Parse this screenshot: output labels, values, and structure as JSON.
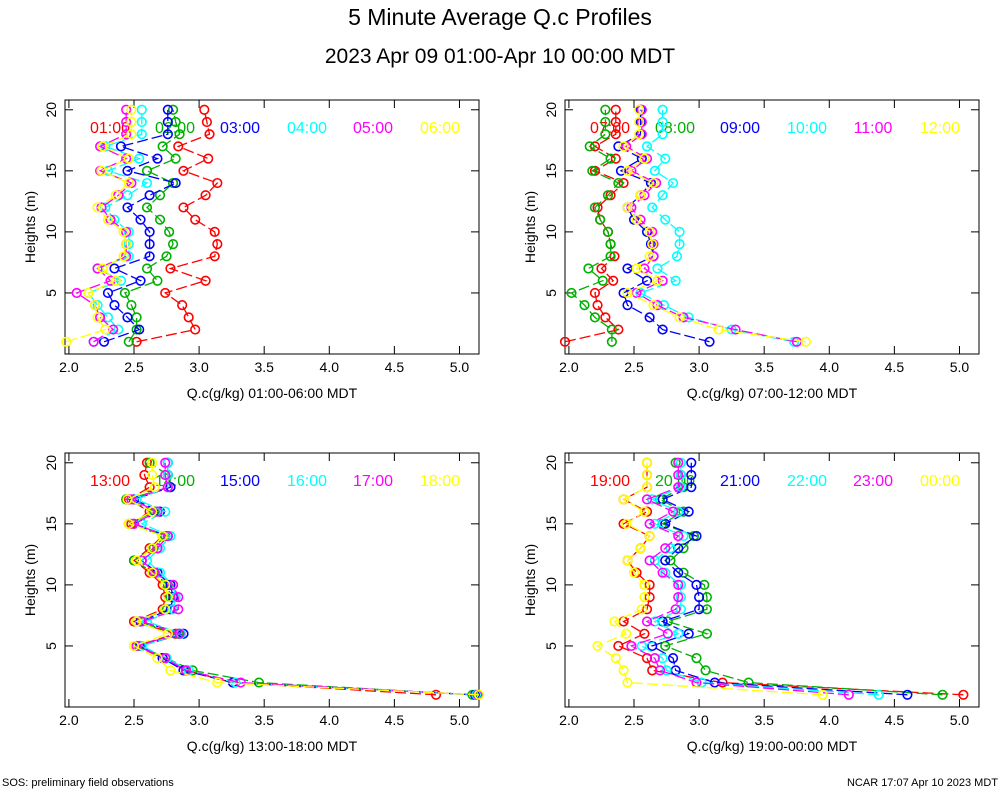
{
  "header": {
    "title": "5 Minute Average Q.c Profiles",
    "subtitle": "2023 Apr 09 01:00-Apr 10 00:00 MDT"
  },
  "footer": {
    "left": "SOS: preliminary field observations",
    "right": "NCAR 17:07 Apr 10 2023 MDT"
  },
  "colors": {
    "series": [
      "#ff0000",
      "#00b000",
      "#0000ff",
      "#00ffff",
      "#ff00ff",
      "#ffff00"
    ]
  },
  "chart_data": [
    {
      "type": "line",
      "title": "",
      "xlabel": "Q.c(g/kg) 01:00-06:00 MDT",
      "ylabel": "Heights (m)",
      "xlim": [
        1.97,
        5.15
      ],
      "ylim": [
        0,
        20.8
      ],
      "x_ticks": [
        "2.0",
        "2.5",
        "3.0",
        "3.5",
        "4.0",
        "4.5",
        "5.0"
      ],
      "y_ticks": [
        "5",
        "10",
        "15",
        "20"
      ],
      "heights": [
        1,
        2,
        3,
        4,
        5,
        6,
        7,
        8,
        9,
        10,
        11,
        12,
        13,
        14,
        15,
        16,
        17,
        18,
        19,
        20
      ],
      "series": [
        {
          "name": "01:00",
          "values": [
            2.52,
            2.97,
            2.92,
            2.87,
            2.74,
            3.05,
            2.78,
            3.12,
            3.14,
            3.12,
            2.97,
            2.88,
            3.05,
            3.14,
            2.88,
            3.07,
            2.84,
            3.08,
            3.06,
            3.04
          ]
        },
        {
          "name": "02:00",
          "values": [
            2.46,
            2.52,
            2.52,
            2.48,
            2.43,
            2.68,
            2.6,
            2.75,
            2.8,
            2.77,
            2.7,
            2.6,
            2.7,
            2.8,
            2.6,
            2.82,
            2.72,
            2.85,
            2.82,
            2.8
          ]
        },
        {
          "name": "03:00",
          "values": [
            2.27,
            2.54,
            2.45,
            2.35,
            2.3,
            2.55,
            2.35,
            2.62,
            2.62,
            2.62,
            2.55,
            2.45,
            2.62,
            2.82,
            2.45,
            2.68,
            2.4,
            2.76,
            2.76,
            2.76
          ]
        },
        {
          "name": "04:00",
          "values": [
            2.19,
            2.38,
            2.3,
            2.22,
            2.15,
            2.4,
            2.22,
            2.46,
            2.46,
            2.46,
            2.35,
            2.28,
            2.45,
            2.6,
            2.3,
            2.54,
            2.28,
            2.56,
            2.56,
            2.56
          ]
        },
        {
          "name": "05:00",
          "values": [
            2.19,
            2.34,
            2.24,
            2.2,
            2.06,
            2.32,
            2.22,
            2.44,
            2.44,
            2.44,
            2.32,
            2.25,
            2.38,
            2.48,
            2.24,
            2.44,
            2.24,
            2.44,
            2.44,
            2.44
          ]
        },
        {
          "name": "06:00",
          "values": [
            1.98,
            2.28,
            2.22,
            2.2,
            2.15,
            2.36,
            2.26,
            2.42,
            2.44,
            2.42,
            2.3,
            2.22,
            2.36,
            2.46,
            2.25,
            2.46,
            2.26,
            2.48,
            2.48,
            2.48
          ]
        }
      ]
    },
    {
      "type": "line",
      "title": "",
      "xlabel": "Q.c(g/kg) 07:00-12:00 MDT",
      "ylabel": "Heights (m)",
      "xlim": [
        1.97,
        5.15
      ],
      "ylim": [
        0,
        20.8
      ],
      "x_ticks": [
        "2.0",
        "2.5",
        "3.0",
        "3.5",
        "4.0",
        "4.5",
        "5.0"
      ],
      "y_ticks": [
        "5",
        "10",
        "15",
        "20"
      ],
      "heights": [
        1,
        2,
        3,
        4,
        5,
        6,
        7,
        8,
        9,
        10,
        11,
        12,
        13,
        14,
        15,
        16,
        17,
        18,
        19,
        20
      ],
      "series": [
        {
          "name": "07:00",
          "values": [
            1.97,
            2.38,
            2.28,
            2.22,
            2.2,
            2.34,
            2.25,
            2.35,
            2.32,
            2.3,
            2.24,
            2.22,
            2.32,
            2.42,
            2.2,
            2.36,
            2.2,
            2.36,
            2.36,
            2.36
          ]
        },
        {
          "name": "08:00",
          "values": [
            2.33,
            2.33,
            2.2,
            2.12,
            2.02,
            2.26,
            2.15,
            2.32,
            2.32,
            2.3,
            2.24,
            2.2,
            2.3,
            2.38,
            2.18,
            2.32,
            2.16,
            2.28,
            2.28,
            2.28
          ]
        },
        {
          "name": "09:00",
          "values": [
            3.08,
            2.72,
            2.62,
            2.45,
            2.42,
            2.6,
            2.45,
            2.65,
            2.63,
            2.6,
            2.5,
            2.45,
            2.55,
            2.63,
            2.4,
            2.56,
            2.38,
            2.55,
            2.55,
            2.55
          ]
        },
        {
          "name": "10:00",
          "values": [
            3.73,
            3.25,
            2.92,
            2.73,
            2.55,
            2.82,
            2.68,
            2.83,
            2.85,
            2.85,
            2.74,
            2.64,
            2.72,
            2.8,
            2.66,
            2.74,
            2.6,
            2.72,
            2.72,
            2.72
          ]
        },
        {
          "name": "11:00",
          "values": [
            3.75,
            3.28,
            2.88,
            2.68,
            2.52,
            2.72,
            2.58,
            2.65,
            2.65,
            2.64,
            2.55,
            2.48,
            2.58,
            2.67,
            2.48,
            2.6,
            2.44,
            2.56,
            2.56,
            2.56
          ]
        },
        {
          "name": "12:00",
          "values": [
            3.82,
            3.15,
            2.85,
            2.65,
            2.45,
            2.68,
            2.52,
            2.62,
            2.64,
            2.62,
            2.52,
            2.45,
            2.55,
            2.65,
            2.45,
            2.58,
            2.42,
            2.54,
            2.54,
            2.54
          ]
        }
      ]
    },
    {
      "type": "line",
      "title": "",
      "xlabel": "Q.c(g/kg) 13:00-18:00 MDT",
      "ylabel": "Heights (m)",
      "xlim": [
        1.97,
        5.15
      ],
      "ylim": [
        0,
        20.8
      ],
      "x_ticks": [
        "2.0",
        "2.5",
        "3.0",
        "3.5",
        "4.0",
        "4.5",
        "5.0"
      ],
      "y_ticks": [
        "5",
        "10",
        "15",
        "20"
      ],
      "heights": [
        1,
        2,
        3,
        4,
        5,
        6,
        7,
        8,
        9,
        10,
        11,
        12,
        13,
        14,
        15,
        16,
        17,
        18,
        19,
        20
      ],
      "series": [
        {
          "name": "13:00",
          "values": [
            4.82,
            3.26,
            2.9,
            2.72,
            2.52,
            2.82,
            2.5,
            2.72,
            2.74,
            2.72,
            2.62,
            2.5,
            2.62,
            2.72,
            2.48,
            2.62,
            2.46,
            2.62,
            2.58,
            2.6
          ]
        },
        {
          "name": "14:00",
          "values": [
            5.1,
            3.46,
            2.95,
            2.75,
            2.54,
            2.84,
            2.52,
            2.75,
            2.78,
            2.76,
            2.65,
            2.5,
            2.65,
            2.74,
            2.46,
            2.66,
            2.44,
            2.78,
            2.76,
            2.62
          ]
        },
        {
          "name": "15:00",
          "values": [
            5.12,
            3.26,
            2.88,
            2.72,
            2.55,
            2.88,
            2.55,
            2.78,
            2.8,
            2.78,
            2.68,
            2.56,
            2.68,
            2.76,
            2.5,
            2.7,
            2.5,
            2.78,
            2.76,
            2.76
          ]
        },
        {
          "name": "16:00",
          "values": [
            5.13,
            3.28,
            2.92,
            2.75,
            2.56,
            2.86,
            2.6,
            2.8,
            2.82,
            2.8,
            2.7,
            2.6,
            2.7,
            2.78,
            2.56,
            2.74,
            2.52,
            2.76,
            2.76,
            2.76
          ]
        },
        {
          "name": "17:00",
          "values": [
            5.14,
            3.32,
            2.9,
            2.74,
            2.52,
            2.85,
            2.56,
            2.84,
            2.84,
            2.8,
            2.66,
            2.56,
            2.68,
            2.76,
            2.5,
            2.68,
            2.48,
            2.76,
            2.74,
            2.74
          ]
        },
        {
          "name": "18:00",
          "values": [
            5.15,
            3.14,
            2.78,
            2.68,
            2.5,
            2.76,
            2.52,
            2.74,
            2.76,
            2.74,
            2.64,
            2.52,
            2.64,
            2.72,
            2.46,
            2.64,
            2.45,
            2.66,
            2.64,
            2.64
          ]
        }
      ]
    },
    {
      "type": "line",
      "title": "",
      "xlabel": "Q.c(g/kg) 19:00-00:00 MDT",
      "ylabel": "Heights (m)",
      "xlim": [
        1.97,
        5.15
      ],
      "ylim": [
        0,
        20.8
      ],
      "x_ticks": [
        "2.0",
        "2.5",
        "3.0",
        "3.5",
        "4.0",
        "4.5",
        "5.0"
      ],
      "y_ticks": [
        "5",
        "10",
        "15",
        "20"
      ],
      "heights": [
        1,
        2,
        3,
        4,
        5,
        6,
        7,
        8,
        9,
        10,
        11,
        12,
        13,
        14,
        15,
        16,
        17,
        18,
        19,
        20
      ],
      "series": [
        {
          "name": "19:00",
          "values": [
            5.03,
            3.18,
            2.64,
            2.6,
            2.38,
            2.58,
            2.42,
            2.6,
            2.62,
            2.62,
            2.52,
            2.45,
            2.55,
            2.62,
            2.42,
            2.6,
            2.42,
            2.6,
            2.6,
            2.6
          ]
        },
        {
          "name": "20:00",
          "values": [
            4.87,
            3.38,
            3.05,
            2.98,
            2.74,
            3.06,
            2.76,
            3.06,
            3.06,
            3.04,
            2.88,
            2.78,
            2.88,
            2.96,
            2.72,
            2.88,
            2.7,
            2.88,
            2.86,
            2.82
          ]
        },
        {
          "name": "21:00",
          "values": [
            4.6,
            3.12,
            2.82,
            2.8,
            2.64,
            2.92,
            2.72,
            3.0,
            3.0,
            2.98,
            2.84,
            2.74,
            2.84,
            2.98,
            2.74,
            2.92,
            2.72,
            2.94,
            2.94,
            2.94
          ]
        },
        {
          "name": "22:00",
          "values": [
            4.38,
            3.02,
            2.75,
            2.72,
            2.56,
            2.84,
            2.66,
            2.86,
            2.86,
            2.86,
            2.74,
            2.66,
            2.78,
            2.88,
            2.66,
            2.84,
            2.64,
            2.86,
            2.86,
            2.86
          ]
        },
        {
          "name": "23:00",
          "values": [
            4.15,
            2.98,
            2.7,
            2.66,
            2.48,
            2.76,
            2.6,
            2.82,
            2.84,
            2.84,
            2.72,
            2.62,
            2.74,
            2.84,
            2.62,
            2.8,
            2.6,
            2.84,
            2.84,
            2.84
          ]
        },
        {
          "name": "00:00",
          "values": [
            3.95,
            2.45,
            2.42,
            2.36,
            2.22,
            2.44,
            2.35,
            2.56,
            2.58,
            2.58,
            2.5,
            2.45,
            2.55,
            2.62,
            2.44,
            2.58,
            2.42,
            2.6,
            2.6,
            2.6
          ]
        }
      ]
    }
  ]
}
